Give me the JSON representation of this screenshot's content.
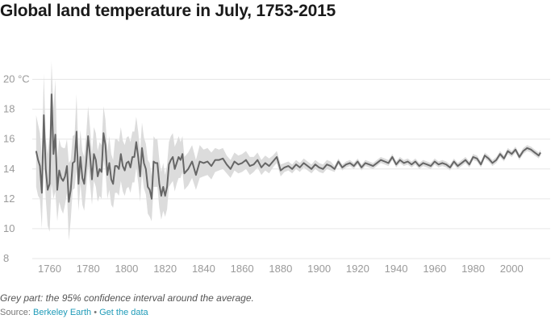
{
  "title": "Global land temperature in July, 1753-2015",
  "note": "Grey part: the 95% confidence interval around the average.",
  "source": {
    "prefix": "Source:",
    "name": "Berkeley Earth",
    "separator": "•",
    "data_link": "Get the data"
  },
  "colors": {
    "line": "#666666",
    "band": "#dcdcdc",
    "grid": "#e6e6e6",
    "link": "#1f9bb8"
  },
  "chart_data": {
    "type": "line",
    "title": "Global land temperature in July, 1753-2015",
    "xlabel": "",
    "ylabel": "",
    "xlim": [
      1751,
      2020
    ],
    "ylim": [
      8,
      21
    ],
    "y_ticks": [
      8,
      10,
      12,
      14,
      16,
      18,
      20
    ],
    "y_tick_labels": [
      "8",
      "10",
      "12",
      "14",
      "16",
      "18",
      "20 °C"
    ],
    "x_ticks": [
      1760,
      1780,
      1800,
      1820,
      1840,
      1860,
      1880,
      1900,
      1920,
      1940,
      1960,
      1980,
      2000
    ],
    "grid": true,
    "series": [
      {
        "type": "line",
        "x": [
          1753,
          1754,
          1755,
          1756,
          1757,
          1758,
          1759,
          1760,
          1761,
          1762,
          1763,
          1764,
          1765,
          1766,
          1767,
          1768,
          1769,
          1770,
          1771,
          1772,
          1773,
          1774,
          1775,
          1776,
          1777,
          1778,
          1779,
          1780,
          1781,
          1782,
          1783,
          1784,
          1785,
          1786,
          1787,
          1788,
          1789,
          1790,
          1791,
          1792,
          1793,
          1794,
          1795,
          1796,
          1797,
          1798,
          1799,
          1800,
          1801,
          1802,
          1803,
          1804,
          1805,
          1806,
          1807,
          1808,
          1809,
          1810,
          1811,
          1812,
          1813,
          1814,
          1815,
          1816,
          1817,
          1818,
          1819,
          1820,
          1821,
          1822,
          1823,
          1824,
          1825,
          1826,
          1827,
          1828,
          1829,
          1830,
          1832,
          1834,
          1836,
          1838,
          1840,
          1842,
          1844,
          1846,
          1848,
          1850,
          1852,
          1854,
          1856,
          1858,
          1860,
          1862,
          1864,
          1866,
          1868,
          1870,
          1872,
          1874,
          1876,
          1878,
          1880,
          1882,
          1884,
          1886,
          1888,
          1890,
          1892,
          1894,
          1896,
          1898,
          1900,
          1902,
          1904,
          1906,
          1908,
          1910,
          1912,
          1914,
          1916,
          1918,
          1920,
          1922,
          1924,
          1926,
          1928,
          1930,
          1932,
          1934,
          1936,
          1938,
          1940,
          1942,
          1944,
          1946,
          1948,
          1950,
          1952,
          1954,
          1956,
          1958,
          1960,
          1962,
          1964,
          1966,
          1968,
          1970,
          1972,
          1974,
          1976,
          1978,
          1980,
          1982,
          1984,
          1986,
          1988,
          1990,
          1992,
          1994,
          1996,
          1998,
          2000,
          2002,
          2004,
          2006,
          2008,
          2010,
          2012,
          2013,
          2014,
          2015
        ],
        "y": [
          15.2,
          14.6,
          14.2,
          12.4,
          17.6,
          14.0,
          12.6,
          13.0,
          19.0,
          15.0,
          16.3,
          12.6,
          13.9,
          13.4,
          13.2,
          13.5,
          14.2,
          11.8,
          12.6,
          14.4,
          14.5,
          16.5,
          13.0,
          14.8,
          13.4,
          13.0,
          14.4,
          16.2,
          14.9,
          13.3,
          15.0,
          14.6,
          13.5,
          14.0,
          13.8,
          16.4,
          15.6,
          13.6,
          14.4,
          13.3,
          13.0,
          14.2,
          14.2,
          14.0,
          15.0,
          14.2,
          13.9,
          14.4,
          14.5,
          14.1,
          14.8,
          14.8,
          15.8,
          14.8,
          13.5,
          15.4,
          14.4,
          14.0,
          12.8,
          12.6,
          12.0,
          14.5,
          14.4,
          14.4,
          13.0,
          12.2,
          12.8,
          12.2,
          12.8,
          14.3,
          14.6,
          14.8,
          14.0,
          14.4,
          14.8,
          14.6,
          15.0,
          13.7,
          14.0,
          14.5,
          13.6,
          14.5,
          14.4,
          14.5,
          14.2,
          14.6,
          14.6,
          14.7,
          14.3,
          14.0,
          14.5,
          14.3,
          14.4,
          14.6,
          14.2,
          14.3,
          14.6,
          14.1,
          14.4,
          14.2,
          14.5,
          14.8,
          13.9,
          14.1,
          14.2,
          14.0,
          14.3,
          14.1,
          14.4,
          14.2,
          14.0,
          14.3,
          14.1,
          14.0,
          14.3,
          14.2,
          14.0,
          14.5,
          14.1,
          14.3,
          14.4,
          14.2,
          14.5,
          14.1,
          14.4,
          14.3,
          14.2,
          14.4,
          14.6,
          14.5,
          14.4,
          14.8,
          14.3,
          14.6,
          14.4,
          14.5,
          14.3,
          14.5,
          14.2,
          14.4,
          14.3,
          14.2,
          14.5,
          14.3,
          14.4,
          14.3,
          14.1,
          14.5,
          14.2,
          14.4,
          14.6,
          14.3,
          14.8,
          14.7,
          14.3,
          14.9,
          14.7,
          14.4,
          14.6,
          15.0,
          14.7,
          15.2,
          15.0,
          15.3,
          14.8,
          15.2,
          15.4,
          15.3,
          15.1,
          15.0,
          14.9,
          15.1
        ],
        "lower": [
          12.8,
          12.2,
          12.0,
          10.0,
          14.8,
          12.0,
          10.2,
          9.8,
          13.0,
          12.0,
          12.5,
          10.5,
          11.8,
          11.3,
          11.0,
          11.6,
          12.4,
          9.2,
          10.6,
          12.6,
          12.7,
          14.0,
          11.2,
          13.0,
          11.6,
          11.2,
          12.6,
          14.2,
          13.0,
          11.6,
          13.2,
          12.8,
          11.8,
          12.2,
          12.0,
          14.6,
          13.9,
          12.0,
          12.6,
          11.6,
          11.4,
          12.4,
          12.4,
          12.2,
          13.2,
          12.5,
          12.2,
          12.7,
          12.8,
          12.4,
          13.1,
          13.1,
          14.1,
          13.1,
          11.8,
          13.7,
          12.7,
          12.3,
          11.0,
          10.8,
          10.5,
          12.8,
          12.8,
          12.8,
          11.4,
          10.6,
          11.2,
          10.8,
          11.3,
          12.8,
          13.0,
          13.2,
          12.5,
          13.0,
          13.4,
          13.4,
          13.8,
          12.6,
          12.9,
          13.4,
          12.6,
          13.4,
          13.5,
          13.6,
          13.3,
          13.8,
          13.9,
          14.0,
          13.7,
          13.4,
          13.9,
          13.7,
          13.8,
          14.0,
          13.6,
          13.8,
          14.1,
          13.6,
          13.9,
          13.7,
          14.1,
          14.4,
          13.5,
          13.8,
          13.9,
          13.7,
          14.0,
          13.8,
          14.1,
          13.9,
          13.7,
          14.0,
          13.8,
          13.7,
          14.0,
          13.9,
          13.8,
          14.3,
          13.9,
          14.1,
          14.2,
          14.0,
          14.3,
          13.9,
          14.2,
          14.1,
          14.0,
          14.2,
          14.4,
          14.3,
          14.2,
          14.6,
          14.1,
          14.4,
          14.2,
          14.3,
          14.1,
          14.3,
          14.0,
          14.2,
          14.1,
          14.0,
          14.3,
          14.1,
          14.2,
          14.1,
          13.9,
          14.3,
          14.0,
          14.2,
          14.4,
          14.1,
          14.6,
          14.5,
          14.1,
          14.7,
          14.5,
          14.2,
          14.4,
          14.8,
          14.5,
          15.0,
          14.8,
          15.1,
          14.6,
          15.0,
          15.2,
          15.1,
          14.9,
          14.8,
          14.7,
          14.9
        ],
        "upper": [
          17.6,
          17.0,
          16.4,
          14.8,
          20.4,
          16.0,
          15.0,
          16.2,
          21.2,
          18.0,
          20.0,
          14.7,
          16.0,
          15.5,
          15.4,
          15.4,
          16.0,
          14.4,
          14.6,
          16.2,
          16.3,
          19.0,
          14.8,
          16.6,
          15.2,
          14.8,
          16.2,
          18.2,
          16.8,
          15.0,
          16.8,
          16.4,
          15.2,
          15.8,
          15.6,
          18.2,
          17.3,
          15.2,
          16.2,
          15.0,
          14.6,
          16.0,
          16.0,
          15.8,
          16.8,
          15.9,
          15.6,
          16.1,
          16.2,
          15.8,
          16.5,
          16.5,
          17.5,
          16.5,
          15.2,
          17.1,
          16.1,
          15.7,
          14.6,
          14.4,
          13.5,
          16.2,
          16.0,
          16.0,
          14.6,
          13.8,
          14.4,
          13.6,
          14.3,
          15.8,
          16.2,
          16.4,
          15.5,
          15.8,
          16.2,
          15.8,
          16.2,
          14.8,
          15.1,
          15.6,
          14.6,
          15.6,
          15.3,
          15.4,
          15.1,
          15.4,
          15.3,
          15.4,
          14.9,
          14.6,
          15.1,
          14.9,
          15.0,
          15.2,
          14.8,
          14.8,
          15.1,
          14.6,
          14.9,
          14.7,
          14.9,
          15.2,
          14.3,
          14.4,
          14.5,
          14.3,
          14.6,
          14.4,
          14.7,
          14.5,
          14.3,
          14.6,
          14.4,
          14.3,
          14.6,
          14.5,
          14.2,
          14.7,
          14.3,
          14.5,
          14.6,
          14.4,
          14.7,
          14.3,
          14.6,
          14.5,
          14.4,
          14.6,
          14.8,
          14.7,
          14.6,
          15.0,
          14.5,
          14.8,
          14.6,
          14.7,
          14.5,
          14.7,
          14.4,
          14.6,
          14.5,
          14.4,
          14.7,
          14.5,
          14.6,
          14.5,
          14.3,
          14.7,
          14.4,
          14.6,
          14.8,
          14.5,
          15.0,
          14.9,
          14.5,
          15.1,
          14.9,
          14.6,
          14.8,
          15.2,
          14.9,
          15.4,
          15.2,
          15.5,
          15.0,
          15.4,
          15.6,
          15.5,
          15.3,
          15.2,
          15.1,
          15.3
        ]
      }
    ]
  }
}
